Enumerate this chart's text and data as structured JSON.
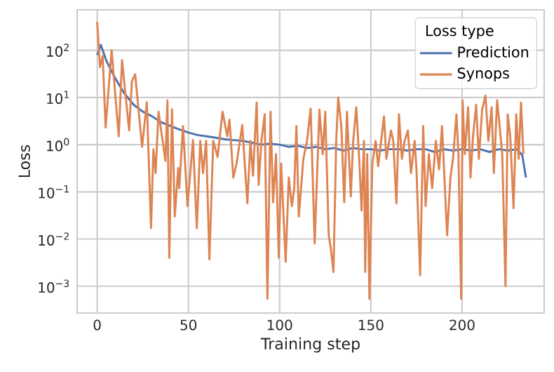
{
  "chart_data": {
    "type": "line",
    "xlabel": "Training step",
    "ylabel": "Loss",
    "legend_title": "Loss type",
    "legend": "top right",
    "grid": true,
    "log": "y",
    "xlim": [
      -11,
      245
    ],
    "ylim": [
      0.00027,
      720
    ],
    "xticks": [
      0,
      50,
      100,
      150,
      200
    ],
    "yticks": [
      {
        "value": 0.001,
        "label": "10$^{−3}$"
      },
      {
        "value": 0.01,
        "label": "10$^{−2}$"
      },
      {
        "value": 0.1,
        "label": "10$^{−1}$"
      },
      {
        "value": 1,
        "label": "10$^{0}$"
      },
      {
        "value": 10,
        "label": "10$^{1}$"
      },
      {
        "value": 100,
        "label": "10$^{2}$"
      }
    ],
    "series": [
      {
        "name": "Prediction",
        "color": "#4c72b0",
        "x": [
          0,
          2,
          5,
          10,
          15,
          20,
          25,
          30,
          35,
          40,
          45,
          50,
          55,
          60,
          65,
          70,
          75,
          80,
          85,
          90,
          95,
          100,
          105,
          110,
          115,
          120,
          125,
          130,
          135,
          140,
          145,
          150,
          155,
          160,
          165,
          170,
          175,
          180,
          185,
          190,
          195,
          200,
          205,
          210,
          215,
          220,
          225,
          230,
          233,
          235
        ],
        "values": [
          80,
          130,
          60,
          25,
          12,
          7,
          5,
          4,
          3,
          2.5,
          2.1,
          1.8,
          1.6,
          1.5,
          1.4,
          1.3,
          1.25,
          1.2,
          1.1,
          1.0,
          1.05,
          1.0,
          0.9,
          0.95,
          0.85,
          0.9,
          0.8,
          0.85,
          0.75,
          0.85,
          0.8,
          0.8,
          0.75,
          0.8,
          0.8,
          0.75,
          0.8,
          0.8,
          0.7,
          0.8,
          0.75,
          0.8,
          0.75,
          0.8,
          0.7,
          0.8,
          0.75,
          0.8,
          0.6,
          0.2
        ]
      },
      {
        "name": "Synops",
        "color": "#dd8452",
        "x": [
          0,
          1.5,
          3,
          4.6,
          7.9,
          11.8,
          13.6,
          17.5,
          19,
          20.8,
          24.6,
          27.2,
          29.5,
          30.8,
          32,
          33.6,
          37.4,
          38.5,
          39.5,
          41,
          42.5,
          44.4,
          45,
          47,
          49.5,
          52.5,
          54.6,
          56.5,
          58,
          59.7,
          61.5,
          63.6,
          66,
          68.7,
          71.3,
          72.5,
          74.6,
          76.4,
          79.5,
          82.3,
          84,
          85.4,
          87.4,
          88.5,
          90,
          91.8,
          93.3,
          95,
          96.4,
          98,
          99.5,
          100.8,
          103.3,
          105,
          106.7,
          108,
          109.2,
          110.5,
          113,
          115,
          117,
          119.2,
          121.8,
          123.6,
          125,
          126.9,
          128,
          129.5,
          131,
          132.1,
          133.8,
          135.4,
          136.9,
          139,
          140.3,
          142,
          143.6,
          144.9,
          146.2,
          146.9,
          148,
          149.2,
          150.8,
          152.6,
          154,
          157.2,
          158.5,
          161,
          162.3,
          164,
          165.4,
          167,
          168.5,
          170.3,
          172,
          174,
          175,
          177,
          178.7,
          180,
          181.8,
          183.6,
          185.6,
          187.4,
          189,
          190.8,
          191.8,
          193.6,
          195,
          196.9,
          198,
          199.5,
          200.3,
          201.5,
          203.3,
          204.6,
          206,
          207.7,
          209.2,
          211,
          212.8,
          214.4,
          216.2,
          217.4,
          219.2,
          220.8,
          222,
          223.8,
          225,
          226.4,
          228.2,
          229.7,
          231,
          232.3,
          233.6
        ],
        "values": [
          400,
          44,
          76,
          2.3,
          100,
          1.5,
          62,
          2,
          22,
          31,
          0.9,
          8,
          0.017,
          0.8,
          0.25,
          5,
          0.45,
          8.7,
          0.004,
          5.6,
          0.03,
          0.32,
          0.12,
          2.5,
          0.05,
          1.25,
          0.017,
          1.2,
          0.25,
          1.2,
          0.0037,
          1.2,
          0.55,
          5,
          1.5,
          3.4,
          0.2,
          0.4,
          2.6,
          0.057,
          1.2,
          0.22,
          7.8,
          0.14,
          1.2,
          4.4,
          0.00054,
          5,
          0.06,
          0.63,
          0.004,
          0.4,
          0.0033,
          0.2,
          0.05,
          0.12,
          2.5,
          0.03,
          0.5,
          1.2,
          5.8,
          0.008,
          5.5,
          0.63,
          5,
          0.012,
          0.0065,
          0.002,
          1.2,
          10,
          2.5,
          0.06,
          5,
          0.08,
          1.2,
          6.2,
          0.5,
          0.04,
          1.2,
          0.002,
          0.63,
          0.00054,
          0.4,
          1.2,
          0.35,
          4,
          0.5,
          2,
          1.2,
          0.057,
          4.4,
          0.5,
          1.2,
          2,
          0.25,
          1.2,
          0.3,
          0.0017,
          2.5,
          0.05,
          0.63,
          0.12,
          1.2,
          0.3,
          2.5,
          0.08,
          0.012,
          0.2,
          0.5,
          4.4,
          0.63,
          0.00054,
          8.7,
          0.63,
          6.2,
          0.2,
          1.5,
          7,
          0.5,
          5.5,
          11,
          1.2,
          6.2,
          0.25,
          8.7,
          2,
          0.63,
          0.001,
          4.4,
          1.5,
          0.045,
          4.4,
          0.5,
          7.8,
          0.63
        ]
      }
    ]
  }
}
